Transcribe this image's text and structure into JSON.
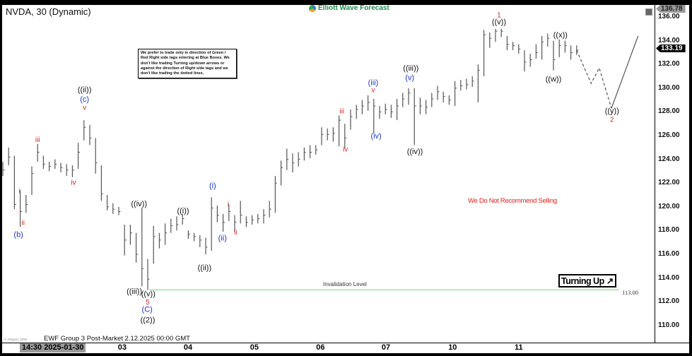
{
  "header": {
    "title": "NVDA, 30 (Dynamic)",
    "logo_text": "Elliott Wave Forecast"
  },
  "note": "We prefer to trade only in direction of Green / Red Right side tags entering at Blue Boxes. We don't like trading Turning up/down arrows or against the direction of Right side tags and we don't like trading the dotted lines.",
  "annotations": {
    "no_sell": "We Do Not Recommend Selling",
    "invalidation_label": "Invalidation Level",
    "invalidation_value": "113.00",
    "turning": "Turning Up",
    "turning_icon": "arrow-up-right-icon"
  },
  "footer": {
    "source": "© eSignal, 2025",
    "text": "EWF Group 3 Post-Market 2.12.2025 00:00 GMT",
    "cursor_time": "14:30 2025-01-30"
  },
  "price_tags": {
    "high": "136.78",
    "last": "133.19"
  },
  "colors": {
    "bars": "#555555",
    "invalidation": "#90e090",
    "red": "#e0201c",
    "blue": "#1a35c8",
    "black": "#111111"
  },
  "chart_data": {
    "type": "ohlc",
    "symbol": "NVDA",
    "interval": "30",
    "ylim": [
      109,
      137
    ],
    "yticks": [
      "110.00",
      "112.00",
      "114.00",
      "116.00",
      "118.00",
      "120.00",
      "122.00",
      "124.00",
      "126.00",
      "128.00",
      "130.00",
      "132.00",
      "134.00",
      "136.00"
    ],
    "xticks": [
      {
        "label": "03",
        "bar": 20.6
      },
      {
        "label": "04",
        "bar": 31.95
      },
      {
        "label": "05",
        "bar": 43.4
      },
      {
        "label": "06",
        "bar": 54.8
      },
      {
        "label": "07",
        "bar": 66.1
      },
      {
        "label": "10",
        "bar": 77.6
      },
      {
        "label": "11",
        "bar": 89
      }
    ],
    "invalidation_level": 113.0,
    "bars_hlc": [
      [
        123.8,
        122.6,
        123.1
      ],
      [
        125.0,
        123.5,
        124.2
      ],
      [
        124.3,
        119.8,
        120.2
      ],
      [
        121.4,
        118.3,
        119.6
      ],
      [
        121.0,
        119.5,
        120.2
      ],
      [
        123.4,
        121.0,
        122.8
      ],
      [
        125.3,
        123.8,
        124.6
      ],
      [
        124.3,
        123.2,
        123.6
      ],
      [
        123.8,
        123.0,
        123.4
      ],
      [
        124.0,
        123.2,
        123.6
      ],
      [
        123.7,
        122.9,
        123.3
      ],
      [
        123.6,
        122.6,
        123.1
      ],
      [
        123.5,
        122.5,
        123.1
      ],
      [
        125.4,
        123.2,
        124.6
      ],
      [
        127.3,
        125.6,
        126.7
      ],
      [
        126.9,
        125.2,
        125.8
      ],
      [
        125.8,
        122.8,
        123.7
      ],
      [
        123.5,
        120.5,
        121.1
      ],
      [
        121.0,
        119.7,
        120.0
      ],
      [
        120.3,
        119.4,
        119.8
      ],
      [
        120.0,
        119.3,
        119.6
      ],
      [
        118.5,
        115.9,
        117.2
      ],
      [
        118.5,
        116.8,
        117.8
      ],
      [
        117.8,
        115.3,
        116.0
      ],
      [
        119.9,
        113.3,
        114.8
      ],
      [
        115.6,
        113.0,
        113.9
      ],
      [
        118.4,
        115.2,
        117.5
      ],
      [
        117.8,
        116.5,
        117.2
      ],
      [
        118.6,
        116.8,
        117.8
      ],
      [
        119.0,
        117.8,
        118.4
      ],
      [
        119.2,
        118.0,
        118.5
      ],
      [
        119.4,
        118.5,
        119.0
      ],
      [
        118.0,
        117.3,
        117.7
      ],
      [
        117.8,
        117.1,
        117.5
      ],
      [
        117.6,
        116.6,
        117.2
      ],
      [
        117.4,
        116.0,
        116.6
      ],
      [
        120.8,
        116.3,
        119.9
      ],
      [
        120.1,
        118.7,
        119.3
      ],
      [
        119.4,
        117.9,
        118.7
      ],
      [
        120.2,
        118.8,
        119.6
      ],
      [
        119.3,
        117.9,
        118.7
      ],
      [
        120.5,
        118.6,
        119.3
      ],
      [
        119.2,
        118.3,
        118.7
      ],
      [
        119.3,
        118.5,
        118.9
      ],
      [
        119.4,
        118.6,
        119.0
      ],
      [
        119.8,
        118.6,
        119.3
      ],
      [
        120.5,
        119.1,
        119.8
      ],
      [
        122.6,
        119.5,
        122.0
      ],
      [
        123.9,
        121.8,
        123.3
      ],
      [
        124.9,
        123.1,
        124.0
      ],
      [
        124.5,
        122.9,
        123.7
      ],
      [
        124.6,
        123.4,
        124.0
      ],
      [
        125.0,
        123.9,
        124.6
      ],
      [
        125.2,
        124.1,
        124.6
      ],
      [
        125.2,
        124.4,
        124.8
      ],
      [
        126.7,
        125.2,
        126.1
      ],
      [
        126.6,
        125.6,
        126.1
      ],
      [
        126.7,
        125.5,
        126.2
      ],
      [
        127.7,
        125.1,
        127.3
      ],
      [
        127.0,
        124.9,
        125.8
      ],
      [
        128.2,
        126.5,
        127.6
      ],
      [
        128.6,
        127.4,
        128.2
      ],
      [
        129.0,
        127.8,
        128.5
      ],
      [
        129.4,
        128.1,
        128.8
      ],
      [
        129.1,
        126.2,
        128.5
      ],
      [
        128.5,
        127.4,
        128.0
      ],
      [
        128.7,
        127.8,
        128.2
      ],
      [
        128.6,
        127.5,
        128.0
      ],
      [
        129.1,
        127.3,
        128.5
      ],
      [
        129.6,
        128.4,
        129.1
      ],
      [
        130.0,
        128.6,
        129.6
      ],
      [
        130.0,
        125.2,
        128.5
      ],
      [
        129.2,
        127.8,
        128.5
      ],
      [
        129.0,
        127.8,
        128.4
      ],
      [
        129.6,
        128.4,
        129.1
      ],
      [
        130.2,
        129.0,
        129.7
      ],
      [
        129.7,
        128.8,
        129.3
      ],
      [
        129.4,
        128.6,
        129.0
      ],
      [
        130.6,
        128.5,
        130.0
      ],
      [
        130.7,
        129.8,
        130.2
      ],
      [
        130.8,
        129.9,
        130.3
      ],
      [
        131.0,
        130.1,
        130.6
      ],
      [
        132.0,
        128.8,
        131.5
      ],
      [
        134.9,
        131.0,
        134.5
      ],
      [
        134.7,
        133.4,
        134.2
      ],
      [
        135.0,
        133.9,
        134.8
      ],
      [
        135.0,
        134.3,
        134.8
      ],
      [
        134.4,
        133.2,
        133.7
      ],
      [
        133.9,
        133.2,
        133.6
      ],
      [
        133.7,
        132.9,
        133.3
      ],
      [
        133.2,
        131.4,
        132.2
      ],
      [
        132.9,
        131.8,
        132.4
      ],
      [
        133.7,
        132.5,
        133.0
      ],
      [
        134.4,
        132.4,
        133.9
      ],
      [
        134.6,
        133.5,
        134.2
      ],
      [
        134.0,
        131.5,
        132.4
      ],
      [
        134.1,
        132.6,
        133.6
      ],
      [
        134.0,
        133.0,
        133.6
      ],
      [
        133.6,
        132.4,
        133.0
      ],
      [
        133.6,
        132.8,
        133.2
      ]
    ],
    "projection": {
      "dashed": [
        [
          99,
          133.2
        ],
        [
          101.5,
          130.4
        ],
        [
          102.9,
          131.7
        ],
        [
          105,
          128.3
        ]
      ],
      "solid": [
        [
          105,
          128.3
        ],
        [
          109.6,
          134.4
        ]
      ]
    },
    "wave_labels": [
      {
        "text": "((ii))",
        "color": "black",
        "bar": 14.1,
        "price": 129.9
      },
      {
        "text": "(c)",
        "color": "blue",
        "bar": 14.1,
        "price": 129.1
      },
      {
        "text": "v",
        "color": "red",
        "bar": 14.1,
        "price": 128.4
      },
      {
        "text": "iii",
        "color": "red",
        "bar": 6,
        "price": 125.7
      },
      {
        "text": "i",
        "color": "red",
        "bar": 2.9,
        "price": 121.4
      },
      {
        "text": "ii",
        "color": "red",
        "bar": 3.5,
        "price": 118.7
      },
      {
        "text": "(b)",
        "color": "blue",
        "bar": 2.7,
        "price": 117.7
      },
      {
        "text": "iv",
        "color": "red",
        "bar": 12.2,
        "price": 122.1
      },
      {
        "text": "((iv))",
        "color": "black",
        "bar": 23.5,
        "price": 120.3
      },
      {
        "text": "((iii))",
        "color": "black",
        "bar": 22.7,
        "price": 112.9
      },
      {
        "text": "((v))",
        "color": "black",
        "bar": 25.1,
        "price": 112.7
      },
      {
        "text": "5",
        "color": "red",
        "bar": 25,
        "price": 112.0
      },
      {
        "text": "(C)",
        "color": "blue",
        "bar": 24.9,
        "price": 111.4
      },
      {
        "text": "((2))",
        "color": "black",
        "bar": 25,
        "price": 110.5
      },
      {
        "text": "((i))",
        "color": "black",
        "bar": 31.1,
        "price": 119.7
      },
      {
        "text": "((ii))",
        "color": "black",
        "bar": 34.8,
        "price": 114.9
      },
      {
        "text": "(i)",
        "color": "blue",
        "bar": 36.2,
        "price": 121.8
      },
      {
        "text": "(ii)",
        "color": "blue",
        "bar": 37.9,
        "price": 117.4
      },
      {
        "text": "i",
        "color": "red",
        "bar": 38.9,
        "price": 120.3
      },
      {
        "text": "ii",
        "color": "red",
        "bar": 40.2,
        "price": 117.9
      },
      {
        "text": "iii",
        "color": "red",
        "bar": 58.5,
        "price": 128.1
      },
      {
        "text": "iv",
        "color": "red",
        "bar": 59.1,
        "price": 124.9
      },
      {
        "text": "(iii)",
        "color": "blue",
        "bar": 63.9,
        "price": 130.5
      },
      {
        "text": "v",
        "color": "red",
        "bar": 63.9,
        "price": 129.9
      },
      {
        "text": "(iv)",
        "color": "blue",
        "bar": 64.4,
        "price": 126.0
      },
      {
        "text": "((iii))",
        "color": "black",
        "bar": 70.4,
        "price": 131.7
      },
      {
        "text": "(v)",
        "color": "blue",
        "bar": 70.2,
        "price": 130.9
      },
      {
        "text": "((iv))",
        "color": "black",
        "bar": 71.1,
        "price": 124.7
      },
      {
        "text": "1",
        "color": "red",
        "bar": 85.6,
        "price": 136.2
      },
      {
        "text": "((v))",
        "color": "black",
        "bar": 85.6,
        "price": 135.6
      },
      {
        "text": "((x))",
        "color": "black",
        "bar": 96.2,
        "price": 134.5
      },
      {
        "text": "((w))",
        "color": "black",
        "bar": 95,
        "price": 130.8
      },
      {
        "text": "((y))",
        "color": "black",
        "bar": 105.1,
        "price": 128.1
      },
      {
        "text": "2",
        "color": "red",
        "bar": 105.1,
        "price": 127.4
      }
    ]
  }
}
